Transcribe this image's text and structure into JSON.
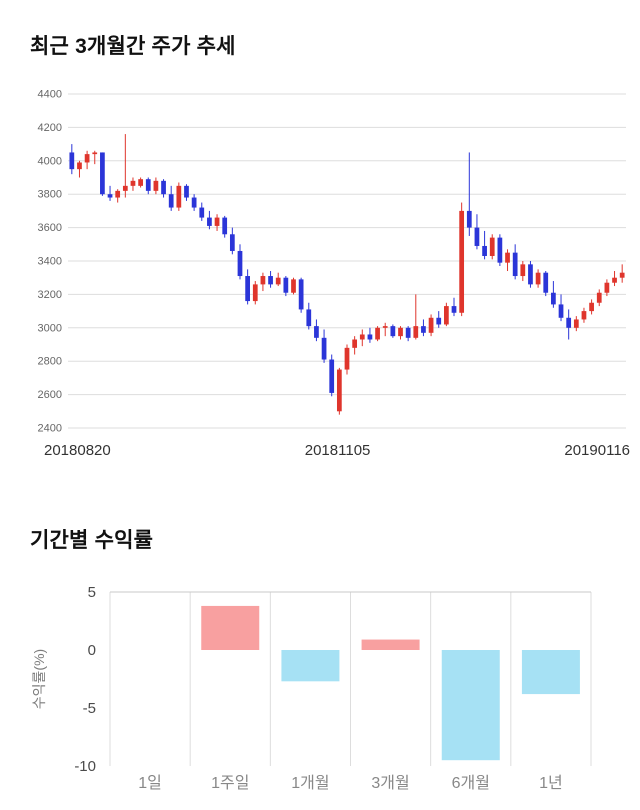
{
  "chart_data": [
    {
      "type": "candlestick",
      "title": "최근 3개월간 주가 추세",
      "ylim": [
        2400,
        4400
      ],
      "y_tick_step": 200,
      "x_tick_labels": [
        "20180820",
        "20181105",
        "20190116"
      ],
      "grid": true,
      "legend_position": "none",
      "up_color": "#df352c",
      "down_color": "#2b35d8",
      "grid_color": "#dddddd",
      "tick_label_color": "#666666",
      "candles_ohlc": [
        [
          4050,
          4100,
          3920,
          3950
        ],
        [
          3950,
          4000,
          3900,
          3990
        ],
        [
          3990,
          4060,
          3950,
          4040
        ],
        [
          4040,
          4060,
          3980,
          4050
        ],
        [
          4050,
          4050,
          3790,
          3800
        ],
        [
          3800,
          3850,
          3760,
          3780
        ],
        [
          3780,
          3830,
          3750,
          3820
        ],
        [
          3820,
          4160,
          3780,
          3850
        ],
        [
          3850,
          3900,
          3820,
          3880
        ],
        [
          3850,
          3900,
          3840,
          3890
        ],
        [
          3890,
          3900,
          3800,
          3820
        ],
        [
          3820,
          3900,
          3800,
          3880
        ],
        [
          3880,
          3890,
          3780,
          3800
        ],
        [
          3800,
          3850,
          3700,
          3720
        ],
        [
          3720,
          3870,
          3700,
          3850
        ],
        [
          3850,
          3860,
          3760,
          3780
        ],
        [
          3780,
          3800,
          3700,
          3720
        ],
        [
          3720,
          3750,
          3640,
          3660
        ],
        [
          3660,
          3700,
          3590,
          3610
        ],
        [
          3610,
          3680,
          3580,
          3660
        ],
        [
          3660,
          3670,
          3540,
          3560
        ],
        [
          3560,
          3600,
          3440,
          3460
        ],
        [
          3460,
          3500,
          3290,
          3310
        ],
        [
          3310,
          3350,
          3140,
          3160
        ],
        [
          3160,
          3280,
          3140,
          3260
        ],
        [
          3260,
          3330,
          3220,
          3310
        ],
        [
          3310,
          3340,
          3240,
          3260
        ],
        [
          3260,
          3330,
          3250,
          3300
        ],
        [
          3300,
          3310,
          3190,
          3210
        ],
        [
          3210,
          3300,
          3200,
          3290
        ],
        [
          3290,
          3300,
          3090,
          3110
        ],
        [
          3110,
          3150,
          2990,
          3010
        ],
        [
          3010,
          3050,
          2920,
          2940
        ],
        [
          2940,
          2990,
          2790,
          2810
        ],
        [
          2810,
          2840,
          2590,
          2610
        ],
        [
          2500,
          2760,
          2480,
          2750
        ],
        [
          2750,
          2900,
          2720,
          2880
        ],
        [
          2880,
          2950,
          2840,
          2930
        ],
        [
          2930,
          2990,
          2890,
          2960
        ],
        [
          2960,
          3000,
          2910,
          2930
        ],
        [
          2930,
          3010,
          2920,
          3000
        ],
        [
          3000,
          3030,
          2950,
          3010
        ],
        [
          3010,
          3020,
          2940,
          2950
        ],
        [
          2950,
          3010,
          2930,
          3000
        ],
        [
          3000,
          3010,
          2920,
          2940
        ],
        [
          2940,
          3200,
          2930,
          3010
        ],
        [
          3010,
          3050,
          2950,
          2970
        ],
        [
          2970,
          3080,
          2950,
          3060
        ],
        [
          3060,
          3100,
          3000,
          3020
        ],
        [
          3020,
          3150,
          3010,
          3130
        ],
        [
          3130,
          3180,
          3070,
          3090
        ],
        [
          3090,
          3750,
          3070,
          3700
        ],
        [
          3700,
          4050,
          3550,
          3600
        ],
        [
          3600,
          3680,
          3470,
          3490
        ],
        [
          3490,
          3580,
          3410,
          3430
        ],
        [
          3430,
          3560,
          3410,
          3540
        ],
        [
          3540,
          3560,
          3370,
          3390
        ],
        [
          3390,
          3470,
          3340,
          3450
        ],
        [
          3450,
          3500,
          3290,
          3310
        ],
        [
          3310,
          3400,
          3280,
          3380
        ],
        [
          3380,
          3400,
          3240,
          3260
        ],
        [
          3260,
          3350,
          3240,
          3330
        ],
        [
          3330,
          3340,
          3190,
          3210
        ],
        [
          3210,
          3280,
          3120,
          3140
        ],
        [
          3140,
          3200,
          3040,
          3060
        ],
        [
          3060,
          3110,
          2930,
          3000
        ],
        [
          3000,
          3070,
          2980,
          3050
        ],
        [
          3050,
          3120,
          3030,
          3100
        ],
        [
          3100,
          3170,
          3080,
          3150
        ],
        [
          3150,
          3230,
          3130,
          3210
        ],
        [
          3210,
          3290,
          3190,
          3270
        ],
        [
          3270,
          3340,
          3250,
          3300
        ],
        [
          3300,
          3380,
          3270,
          3330
        ]
      ]
    },
    {
      "type": "bar",
      "title": "기간별 수익률",
      "ylabel": "수익률(%)",
      "xlabel": "",
      "categories": [
        "1일",
        "1주일",
        "1개월",
        "3개월",
        "6개월",
        "1년"
      ],
      "values": [
        0,
        3.8,
        -2.7,
        0.9,
        -9.5,
        -3.8
      ],
      "ylim": [
        -10,
        5
      ],
      "y_ticks": [
        5,
        0,
        -5,
        -10
      ],
      "grid": "vertical",
      "legend_position": "none",
      "positive_color": "#f8a0a0",
      "negative_color": "#a6e1f4",
      "grid_color": "#dddddd",
      "top_line_color": "#c9c9c9",
      "tick_label_color": "#4a4a4a",
      "category_label_color": "#888888",
      "ylabel_color": "#7d7d7d"
    }
  ]
}
